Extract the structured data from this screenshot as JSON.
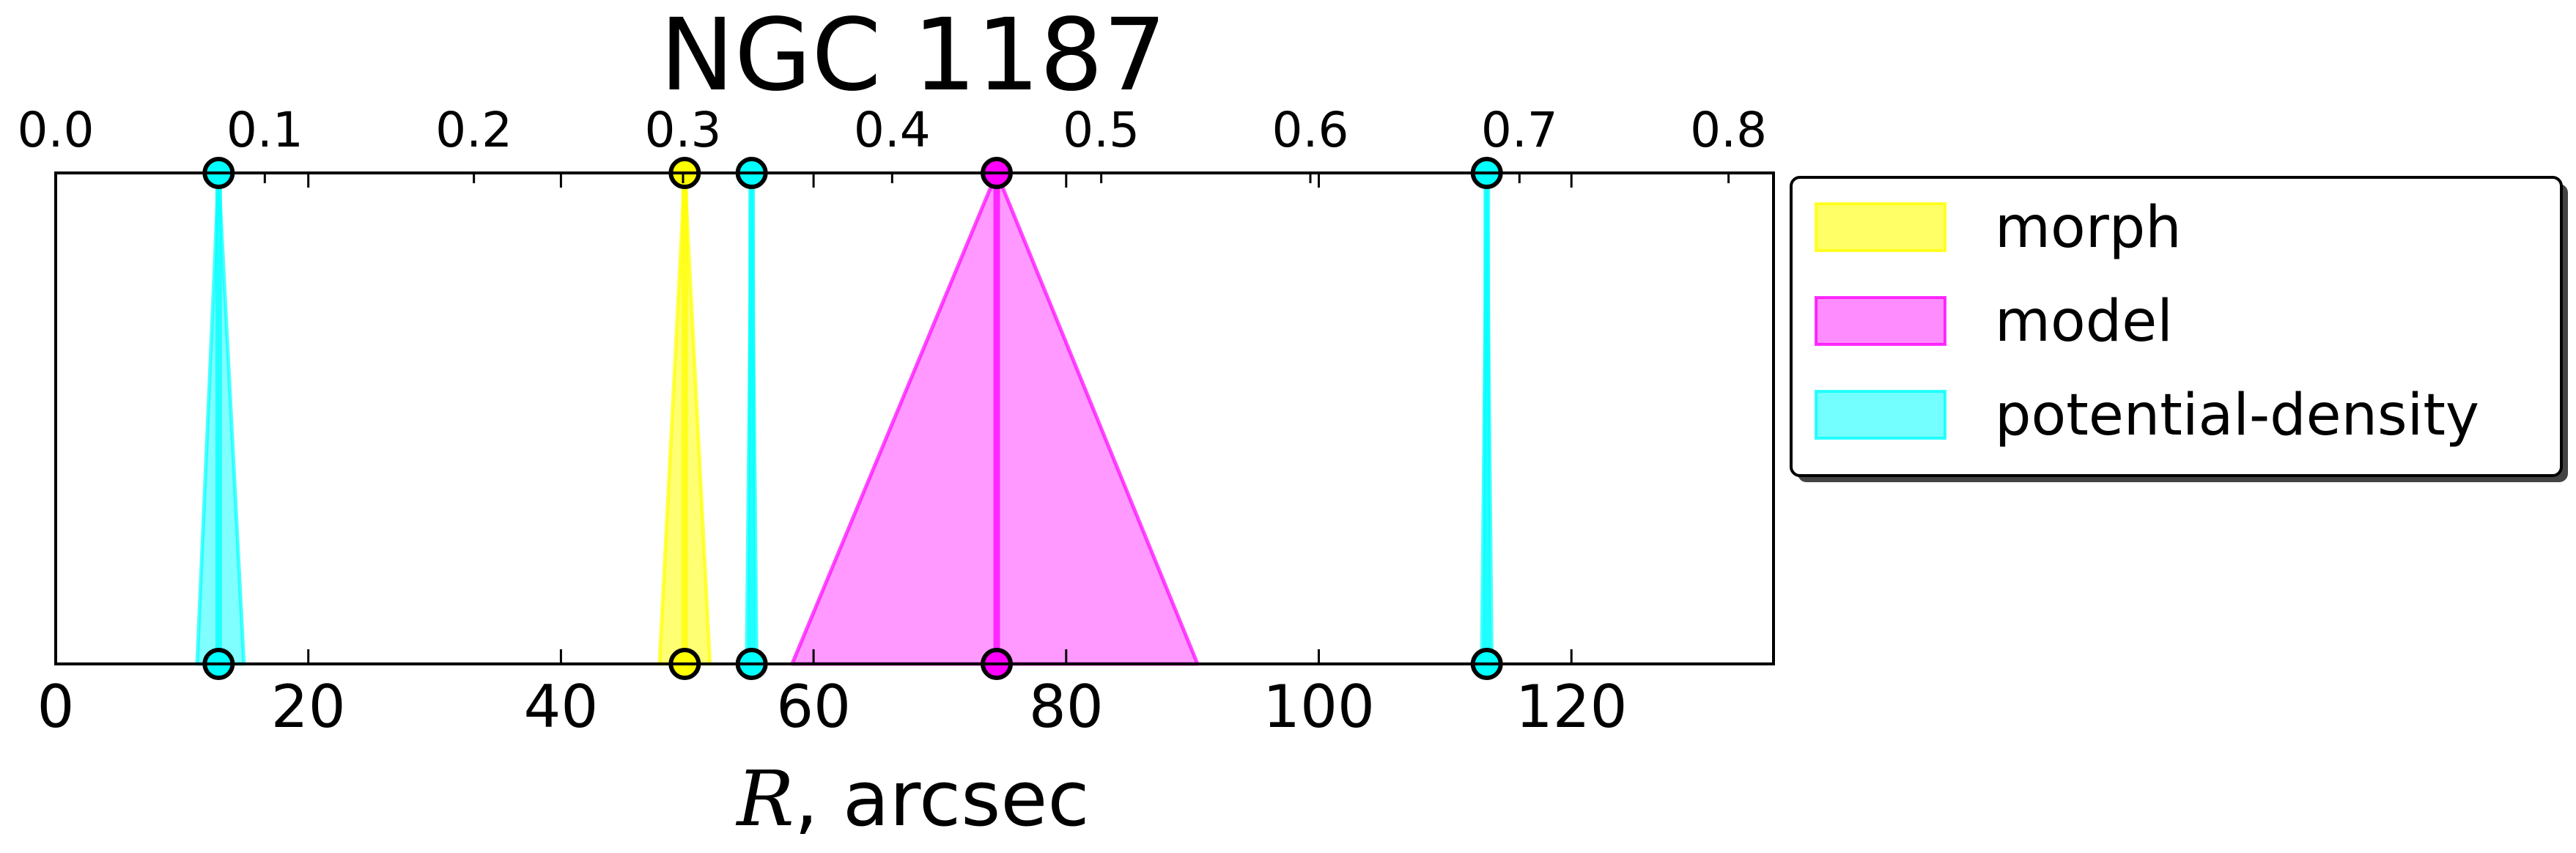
{
  "chart_data": {
    "type": "area",
    "title": "NGC 1187",
    "xlabel": {
      "math": "R",
      "rest": ", arcsec"
    },
    "xlim": [
      0,
      136
    ],
    "x_ticks": [
      0,
      20,
      40,
      60,
      80,
      100,
      120
    ],
    "x_tick_labels": [
      "0",
      "20",
      "40",
      "60",
      "80",
      "100",
      "120"
    ],
    "top_axis": {
      "lim": [
        0.0,
        0.8215
      ],
      "ticks": [
        0.0,
        0.1,
        0.2,
        0.3,
        0.4,
        0.5,
        0.6,
        0.7,
        0.8
      ],
      "tick_labels": [
        "0.0",
        "0.1",
        "0.2",
        "0.3",
        "0.4",
        "0.5",
        "0.6",
        "0.7",
        "0.8"
      ]
    },
    "grid": false,
    "legend_position": "right, outside plot",
    "series": [
      {
        "name": "morph",
        "color": "#ffff00",
        "alpha": 0.55,
        "radii": [
          {
            "center": 49.8,
            "lower": 47.8,
            "upper": 51.8
          }
        ]
      },
      {
        "name": "model",
        "color": "#ff00ff",
        "alpha": 0.4,
        "radii": [
          {
            "center": 74.5,
            "lower": 58.3,
            "upper": 90.4
          }
        ]
      },
      {
        "name": "potential-density",
        "color": "#00ffff",
        "alpha": 0.5,
        "radii": [
          {
            "center": 12.9,
            "lower": 11.2,
            "upper": 14.9
          },
          {
            "center": 55.1,
            "lower": 54.7,
            "upper": 55.5
          },
          {
            "center": 113.3,
            "lower": 112.9,
            "upper": 113.7
          }
        ]
      }
    ]
  }
}
